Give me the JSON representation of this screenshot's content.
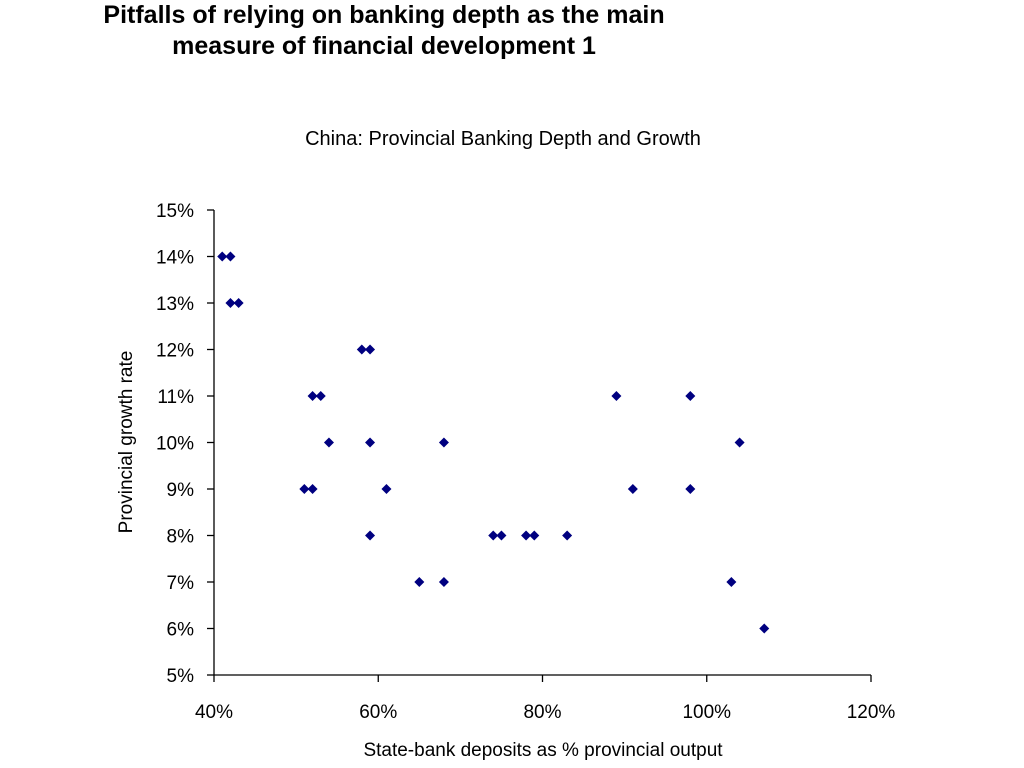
{
  "slide": {
    "title_line1": "Pitfalls of relying on banking depth as the main",
    "title_line2": "measure of financial development 1"
  },
  "chart_data": {
    "type": "scatter",
    "title": "China: Provincial Banking Depth and Growth",
    "xlabel": "State-bank deposits as % provincial output",
    "ylabel": "Provincial growth rate",
    "xlim": [
      0.4,
      1.2
    ],
    "ylim": [
      0.05,
      0.15
    ],
    "x_ticks": [
      0.4,
      0.6,
      0.8,
      1.0,
      1.2
    ],
    "x_tick_labels": [
      "40%",
      "60%",
      "80%",
      "100%",
      "120%"
    ],
    "y_ticks": [
      0.05,
      0.06,
      0.07,
      0.08,
      0.09,
      0.1,
      0.11,
      0.12,
      0.13,
      0.14,
      0.15
    ],
    "y_tick_labels": [
      "5%",
      "6%",
      "7%",
      "8%",
      "9%",
      "10%",
      "11%",
      "12%",
      "13%",
      "14%",
      "15%"
    ],
    "grid": false,
    "legend": "none",
    "marker": "diamond",
    "marker_color": "#000080",
    "series": [
      {
        "points": [
          {
            "x": 0.41,
            "y": 0.14
          },
          {
            "x": 0.42,
            "y": 0.14
          },
          {
            "x": 0.42,
            "y": 0.13
          },
          {
            "x": 0.43,
            "y": 0.13
          },
          {
            "x": 0.51,
            "y": 0.09
          },
          {
            "x": 0.52,
            "y": 0.11
          },
          {
            "x": 0.52,
            "y": 0.09
          },
          {
            "x": 0.53,
            "y": 0.11
          },
          {
            "x": 0.54,
            "y": 0.1
          },
          {
            "x": 0.58,
            "y": 0.12
          },
          {
            "x": 0.59,
            "y": 0.12
          },
          {
            "x": 0.59,
            "y": 0.1
          },
          {
            "x": 0.59,
            "y": 0.08
          },
          {
            "x": 0.61,
            "y": 0.09
          },
          {
            "x": 0.65,
            "y": 0.07
          },
          {
            "x": 0.68,
            "y": 0.1
          },
          {
            "x": 0.68,
            "y": 0.07
          },
          {
            "x": 0.74,
            "y": 0.08
          },
          {
            "x": 0.75,
            "y": 0.08
          },
          {
            "x": 0.78,
            "y": 0.08
          },
          {
            "x": 0.79,
            "y": 0.08
          },
          {
            "x": 0.83,
            "y": 0.08
          },
          {
            "x": 0.89,
            "y": 0.11
          },
          {
            "x": 0.91,
            "y": 0.09
          },
          {
            "x": 0.98,
            "y": 0.11
          },
          {
            "x": 0.98,
            "y": 0.09
          },
          {
            "x": 1.03,
            "y": 0.07
          },
          {
            "x": 1.04,
            "y": 0.1
          },
          {
            "x": 1.07,
            "y": 0.06
          }
        ]
      }
    ]
  }
}
